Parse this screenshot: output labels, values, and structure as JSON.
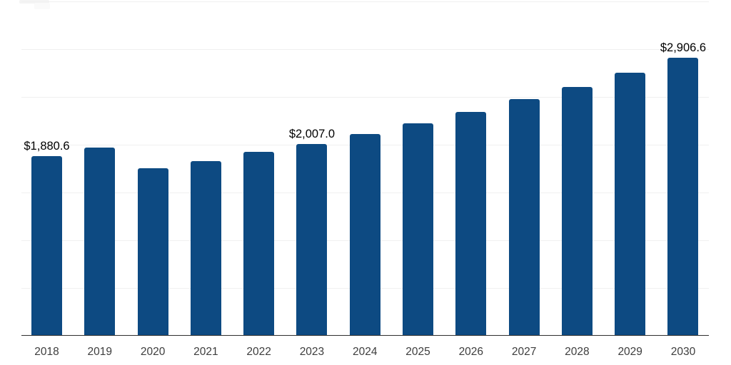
{
  "chart_data": {
    "type": "bar",
    "title": "",
    "xlabel": "",
    "ylabel": "",
    "categories": [
      "2018",
      "2019",
      "2020",
      "2021",
      "2022",
      "2023",
      "2024",
      "2025",
      "2026",
      "2027",
      "2028",
      "2029",
      "2030"
    ],
    "values": [
      1880.6,
      1969.0,
      1752.0,
      1827.0,
      1924.0,
      2007.0,
      2110.0,
      2223.0,
      2342.0,
      2476.0,
      2603.0,
      2752.0,
      2906.6
    ],
    "data_labels": {
      "2018": "$1,880.6",
      "2023": "$2,007.0",
      "2030": "$2,906.6"
    },
    "ylim": [
      0,
      3500
    ],
    "gridline_step": 500,
    "grid": "horizontal-only",
    "legend": "none",
    "y_axis_labels_visible": false,
    "colors": {
      "bar": "#0d4a82",
      "axis_line": "#2e2e2e",
      "gridline": "#f0f0f0",
      "x_tick_label": "#3d3d3d",
      "data_label": "#000000",
      "background": "#ffffff"
    }
  }
}
